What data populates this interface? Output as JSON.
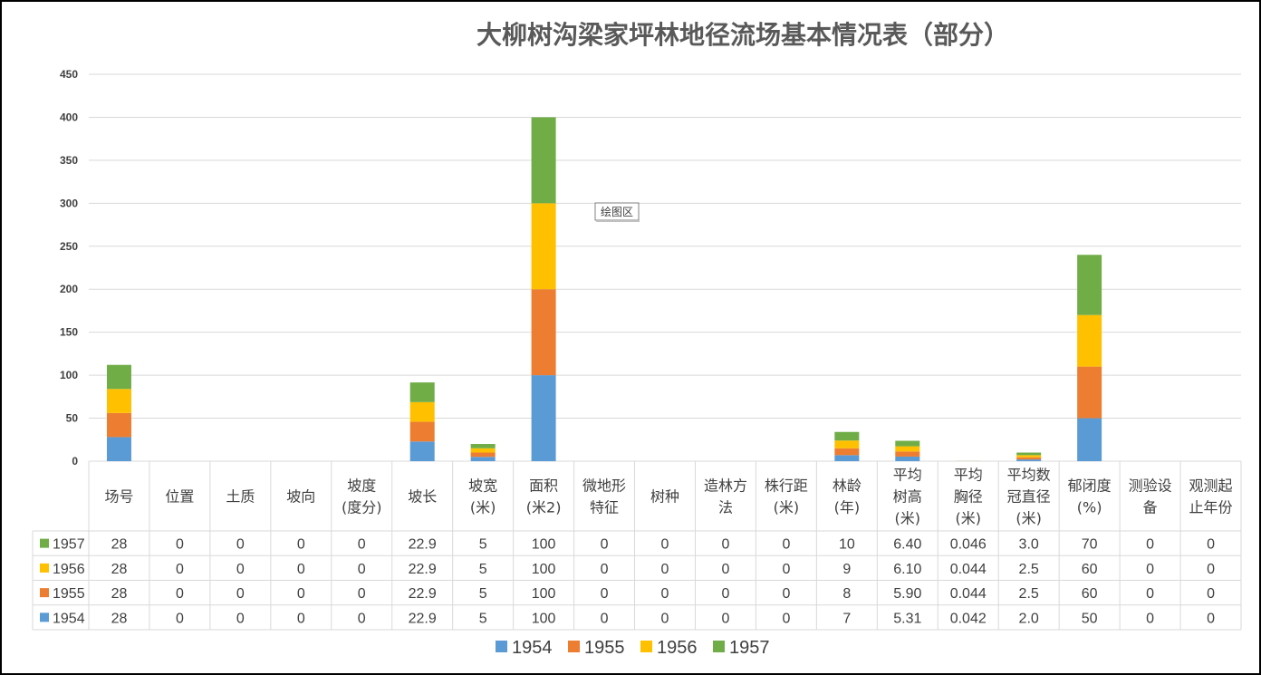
{
  "chart_data": {
    "type": "bar",
    "stacked": true,
    "title": "大柳树沟梁家坪林地径流场基本情况表（部分）",
    "ylim": [
      0,
      450
    ],
    "yticks": [
      0,
      50,
      100,
      150,
      200,
      250,
      300,
      350,
      400,
      450
    ],
    "grid": true,
    "legend_position": "bottom",
    "categories": [
      [
        "场号"
      ],
      [
        "位置"
      ],
      [
        "土质"
      ],
      [
        "坡向"
      ],
      [
        "坡度",
        "(度分)"
      ],
      [
        "坡长"
      ],
      [
        "坡宽",
        "(米)"
      ],
      [
        "面积",
        "(米2)"
      ],
      [
        "微地形",
        "特征"
      ],
      [
        "树种"
      ],
      [
        "造林方",
        "法"
      ],
      [
        "株行距",
        "(米)"
      ],
      [
        "林龄",
        "(年)"
      ],
      [
        "平均",
        "树高",
        "(米)"
      ],
      [
        "平均",
        "胸径",
        "(米)"
      ],
      [
        "平均数",
        "冠直径",
        "(米)"
      ],
      [
        "郁闭度",
        "(%)"
      ],
      [
        "测验设",
        "备"
      ],
      [
        "观测起",
        "止年份"
      ]
    ],
    "series": [
      {
        "name": "1954",
        "color": "#5B9BD5",
        "values": [
          28,
          0,
          0,
          0,
          0,
          22.9,
          5,
          100,
          0,
          0,
          0,
          0,
          7,
          5.31,
          0.042,
          2.0,
          50,
          0,
          0
        ],
        "labels": [
          "28",
          "0",
          "0",
          "0",
          "0",
          "22.9",
          "5",
          "100",
          "0",
          "0",
          "0",
          "0",
          "7",
          "5.31",
          "0.042",
          "2.0",
          "50",
          "0",
          "0"
        ]
      },
      {
        "name": "1955",
        "color": "#ED7D31",
        "values": [
          28,
          0,
          0,
          0,
          0,
          22.9,
          5,
          100,
          0,
          0,
          0,
          0,
          8,
          5.9,
          0.044,
          2.5,
          60,
          0,
          0
        ],
        "labels": [
          "28",
          "0",
          "0",
          "0",
          "0",
          "22.9",
          "5",
          "100",
          "0",
          "0",
          "0",
          "0",
          "8",
          "5.90",
          "0.044",
          "2.5",
          "60",
          "0",
          "0"
        ]
      },
      {
        "name": "1956",
        "color": "#FFC000",
        "values": [
          28,
          0,
          0,
          0,
          0,
          22.9,
          5,
          100,
          0,
          0,
          0,
          0,
          9,
          6.1,
          0.044,
          2.5,
          60,
          0,
          0
        ],
        "labels": [
          "28",
          "0",
          "0",
          "0",
          "0",
          "22.9",
          "5",
          "100",
          "0",
          "0",
          "0",
          "0",
          "9",
          "6.10",
          "0.044",
          "2.5",
          "60",
          "0",
          "0"
        ]
      },
      {
        "name": "1957",
        "color": "#70AD47",
        "values": [
          28,
          0,
          0,
          0,
          0,
          22.9,
          5,
          100,
          0,
          0,
          0,
          0,
          10,
          6.4,
          0.046,
          3.0,
          70,
          0,
          0
        ],
        "labels": [
          "28",
          "0",
          "0",
          "0",
          "0",
          "22.9",
          "5",
          "100",
          "0",
          "0",
          "0",
          "0",
          "10",
          "6.40",
          "0.046",
          "3.0",
          "70",
          "0",
          "0"
        ]
      }
    ],
    "tooltip": "绘图区"
  }
}
